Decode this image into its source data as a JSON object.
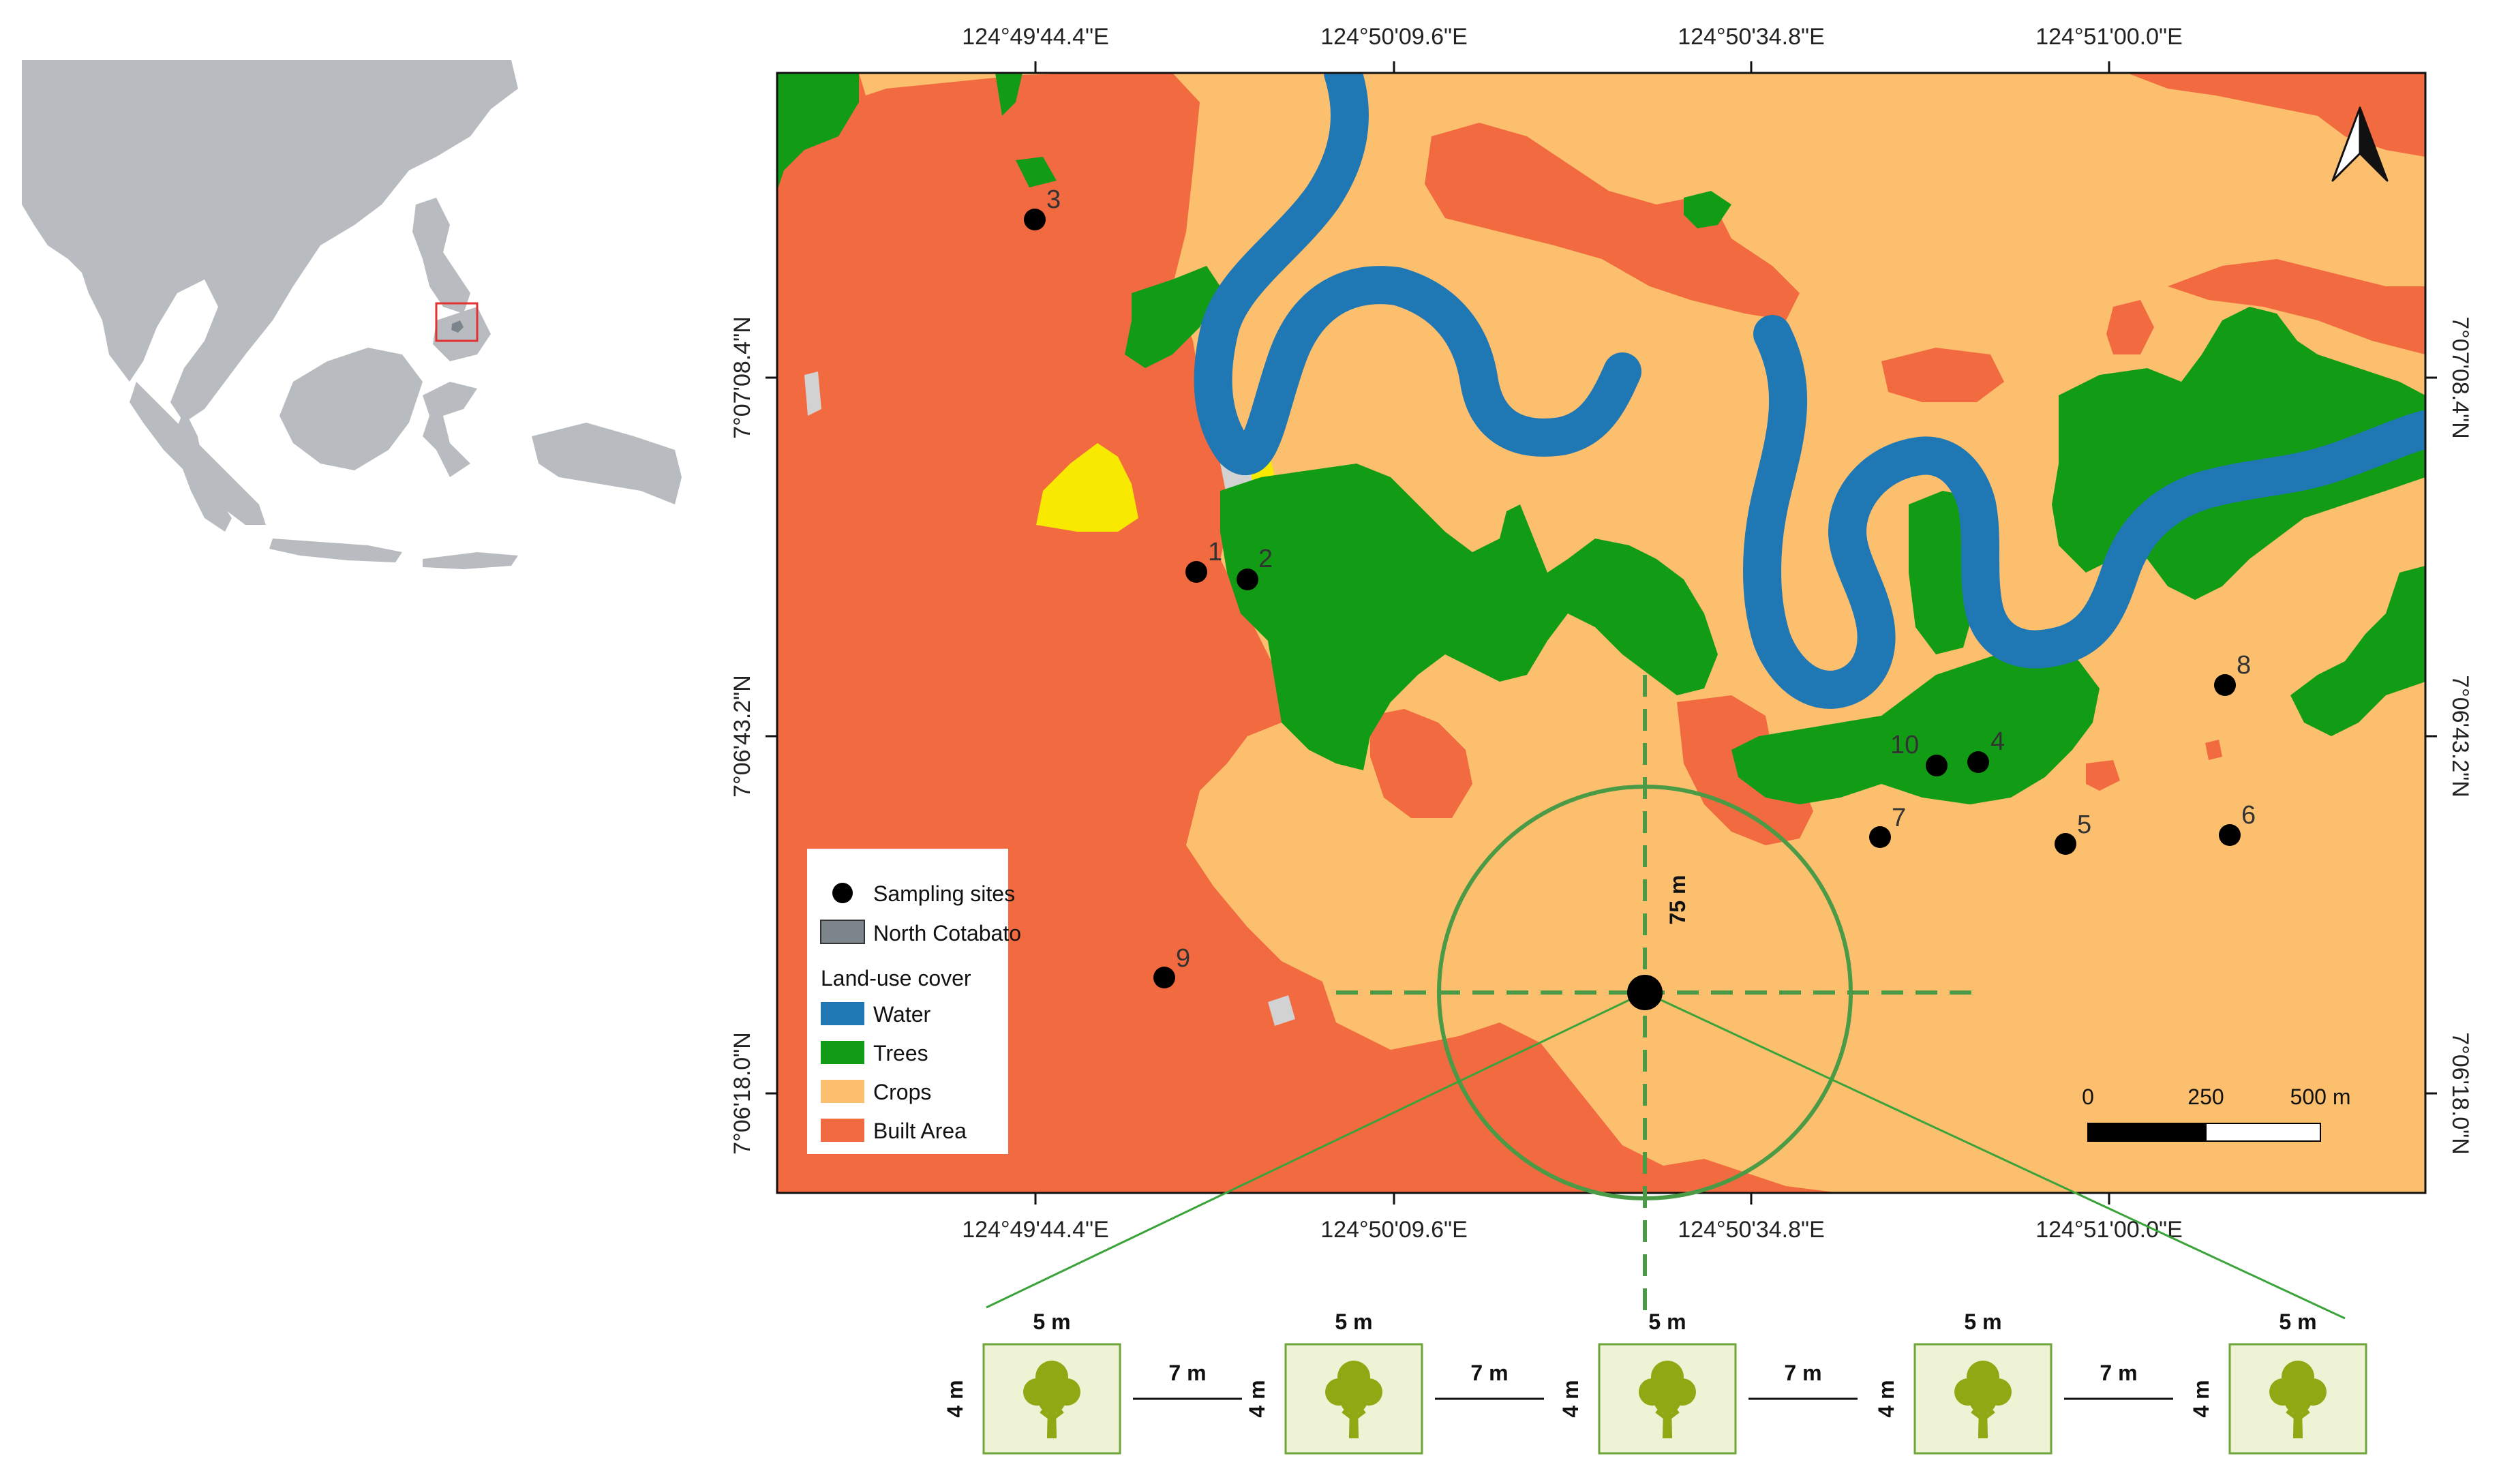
{
  "colors": {
    "water": "#1f77b4",
    "trees": "#129c15",
    "crops": "#fbbf6e",
    "built": "#f26a3f",
    "bare": "#d2d2d2",
    "yellow": "#f7ea00",
    "inset_land": "#b8bcc0",
    "cotabato": "#7c858c",
    "transect": "#4a9a46",
    "plot_fill": "#eef3d6",
    "tree_icon": "#8fa814"
  },
  "map": {
    "top_ticks": [
      "124°49'44.4\"E",
      "124°50'09.6\"E",
      "124°50'34.8\"E",
      "124°51'00.0\"E"
    ],
    "bottom_ticks": [
      "124°49'44.4\"E",
      "124°50'09.6\"E",
      "124°50'34.8\"E",
      "124°51'00.0\"E"
    ],
    "left_ticks": [
      "7°07'08.4\"N",
      "7°06'43.2\"N",
      "7°06'18.0\"N"
    ],
    "right_ticks": [
      "7°07'08.4\"N",
      "7°06'43.2\"N",
      "7°06'18.0\"N"
    ],
    "north_arrow": "north-arrow-icon"
  },
  "sites": [
    {
      "label": "1"
    },
    {
      "label": "2"
    },
    {
      "label": "3"
    },
    {
      "label": "4"
    },
    {
      "label": "5"
    },
    {
      "label": "6"
    },
    {
      "label": "7"
    },
    {
      "label": "8"
    },
    {
      "label": "9"
    },
    {
      "label": "10"
    }
  ],
  "legend": {
    "sampling_sites": "Sampling sites",
    "north_cotabato": "North Cotabato",
    "land_use_title": "Land-use cover",
    "water": "Water",
    "trees": "Trees",
    "crops": "Crops",
    "built": "Built Area"
  },
  "scale": {
    "labels": [
      "0",
      "250",
      "500 m"
    ]
  },
  "transect": {
    "radius_label": "75 m",
    "plot_width_label": "5 m",
    "plot_height_label": "4 m",
    "gap_label": "7 m"
  }
}
